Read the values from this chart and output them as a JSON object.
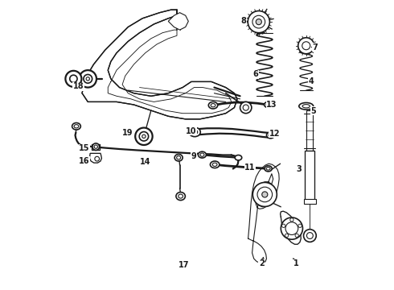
{
  "bg_color": "#ffffff",
  "fig_width": 4.9,
  "fig_height": 3.6,
  "dpi": 100,
  "lc": "#1a1a1a",
  "lw": 0.8,
  "labels": {
    "1": [
      0.845,
      0.088,
      0.83,
      0.115
    ],
    "2": [
      0.725,
      0.088,
      0.734,
      0.12
    ],
    "3": [
      0.856,
      0.415,
      0.87,
      0.43
    ],
    "4": [
      0.898,
      0.72,
      0.878,
      0.728
    ],
    "5": [
      0.905,
      0.618,
      0.882,
      0.622
    ],
    "6": [
      0.704,
      0.745,
      0.724,
      0.745
    ],
    "7": [
      0.912,
      0.84,
      0.888,
      0.84
    ],
    "8": [
      0.661,
      0.93,
      0.686,
      0.928
    ],
    "9": [
      0.488,
      0.462,
      0.508,
      0.468
    ],
    "10": [
      0.48,
      0.548,
      0.502,
      0.548
    ],
    "11": [
      0.685,
      0.422,
      0.665,
      0.428
    ],
    "12": [
      0.77,
      0.54,
      0.752,
      0.545
    ],
    "13": [
      0.76,
      0.64,
      0.742,
      0.645
    ],
    "14": [
      0.32,
      0.44,
      0.34,
      0.448
    ],
    "15": [
      0.108,
      0.488,
      0.128,
      0.49
    ],
    "16": [
      0.108,
      0.445,
      0.128,
      0.449
    ],
    "17": [
      0.455,
      0.082,
      0.438,
      0.094
    ],
    "18": [
      0.088,
      0.704,
      0.11,
      0.7
    ],
    "19": [
      0.258,
      0.542,
      0.278,
      0.535
    ]
  },
  "font_size": 7.0
}
